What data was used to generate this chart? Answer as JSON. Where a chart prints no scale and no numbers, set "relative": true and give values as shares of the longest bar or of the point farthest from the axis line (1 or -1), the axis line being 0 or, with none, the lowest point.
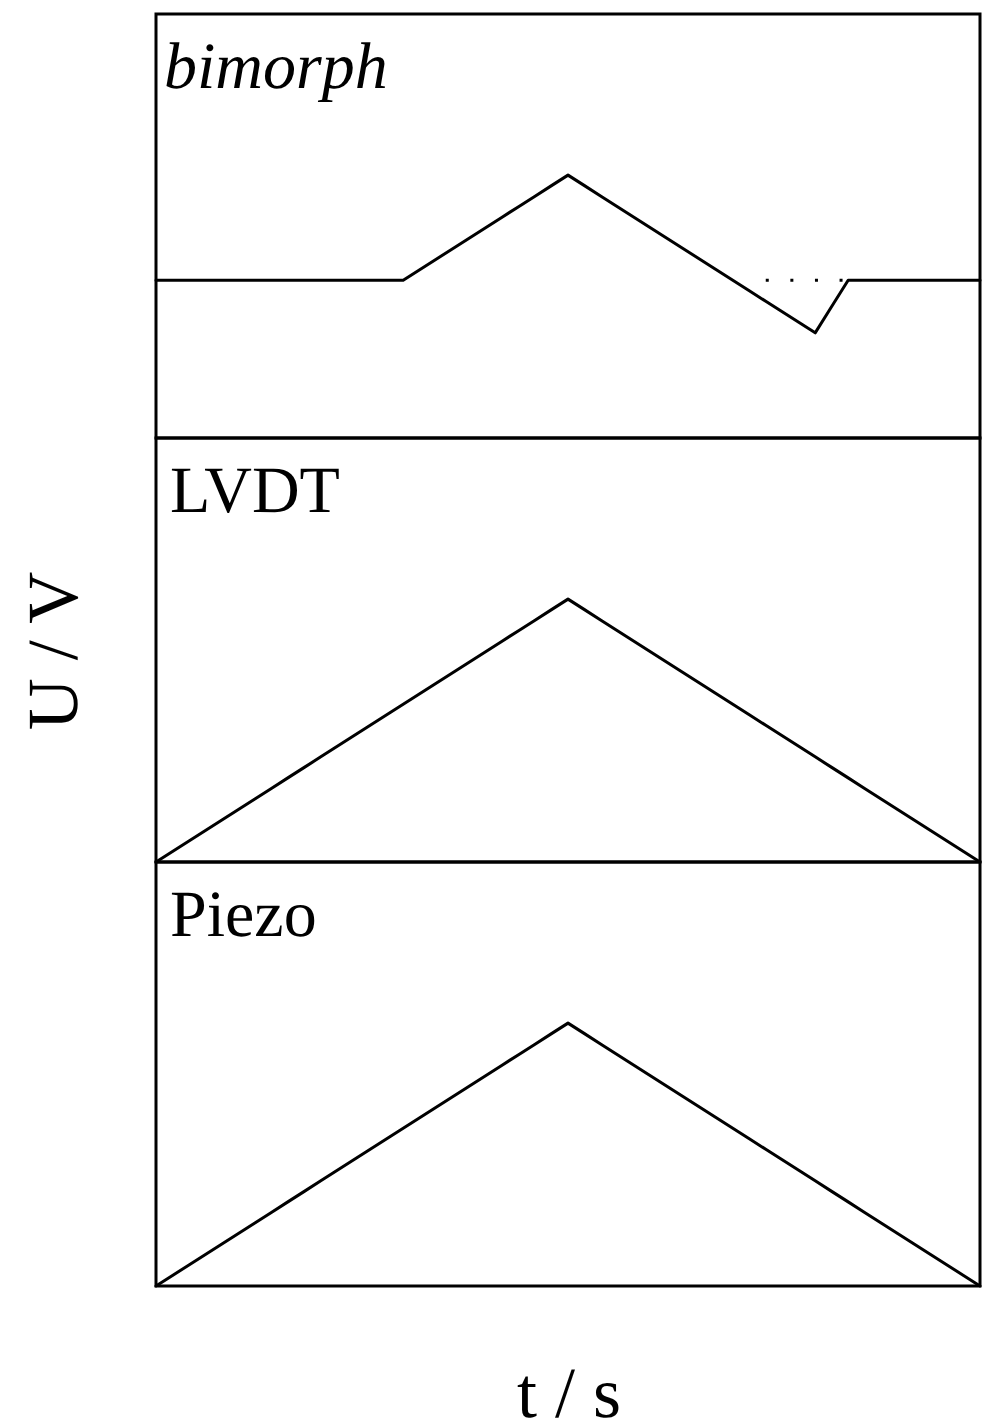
{
  "chart_data": [
    {
      "type": "line",
      "title": "bimorph",
      "relative": true,
      "tick_labels": false,
      "categories": [
        null,
        null,
        null,
        null,
        null,
        null,
        null,
        null,
        null,
        null,
        null,
        null,
        null,
        null,
        null,
        null,
        null,
        null,
        null,
        null,
        null,
        null,
        null,
        null,
        null,
        null,
        null,
        null,
        null,
        null,
        null,
        null,
        null,
        null,
        null,
        null,
        null,
        null,
        null,
        null,
        null,
        null,
        null,
        null,
        null,
        null,
        null,
        null,
        null,
        null,
        null
      ],
      "series": [
        {
          "color": "#000000",
          "values": [
            0.6,
            0.6,
            0.6,
            0.6,
            0.6,
            0.6,
            0.6,
            0.6,
            0.6,
            0.6,
            0.6,
            0.6,
            0.6,
            0.6,
            0.6,
            0.6,
            0.64,
            0.68,
            0.72,
            0.76,
            0.8,
            0.84,
            0.88,
            0.92,
            0.96,
            1,
            0.96,
            0.92,
            0.88,
            0.84,
            0.8,
            0.76,
            0.72,
            0.68,
            0.64,
            0.6,
            0.56,
            0.52,
            0.48,
            0.44,
            0.4,
            0.5,
            0.6,
            0.6,
            0.6,
            0.6,
            0.6,
            0.6,
            0.6,
            0.6,
            0.6
          ]
        },
        {
          "color": "#000000",
          "line_style": "dotted",
          "values": [
            null,
            null,
            null,
            null,
            null,
            null,
            null,
            null,
            null,
            null,
            null,
            null,
            null,
            null,
            null,
            null,
            null,
            null,
            null,
            null,
            null,
            null,
            null,
            null,
            null,
            null,
            null,
            null,
            null,
            null,
            null,
            null,
            null,
            null,
            null,
            null,
            null,
            0.6,
            0.6,
            0.6,
            0.6,
            0.6,
            0.6,
            null,
            null,
            null,
            null,
            null,
            null,
            null,
            null
          ]
        }
      ]
    },
    {
      "type": "line",
      "title": "LVDT",
      "ylabel": "U / V",
      "relative": true,
      "tick_labels": false,
      "categories": [
        null,
        null,
        null,
        null,
        null,
        null,
        null,
        null,
        null,
        null,
        null,
        null,
        null,
        null,
        null,
        null,
        null,
        null,
        null,
        null,
        null,
        null,
        null,
        null,
        null,
        null,
        null,
        null,
        null,
        null,
        null,
        null,
        null,
        null,
        null,
        null,
        null,
        null,
        null,
        null,
        null,
        null,
        null,
        null,
        null,
        null,
        null,
        null,
        null,
        null,
        null
      ],
      "series": [
        {
          "color": "#000000",
          "values": [
            0,
            0.04,
            0.08,
            0.12,
            0.16,
            0.2,
            0.24,
            0.28,
            0.32,
            0.36,
            0.4,
            0.44,
            0.48,
            0.52,
            0.56,
            0.6,
            0.64,
            0.68,
            0.72,
            0.76,
            0.8,
            0.84,
            0.88,
            0.92,
            0.96,
            1,
            0.96,
            0.92,
            0.88,
            0.84,
            0.8,
            0.76,
            0.72,
            0.68,
            0.64,
            0.6,
            0.56,
            0.52,
            0.48,
            0.44,
            0.4,
            0.36,
            0.32,
            0.28,
            0.24,
            0.2,
            0.16,
            0.12,
            0.08,
            0.04,
            0
          ]
        }
      ]
    },
    {
      "type": "line",
      "title": "Piezo",
      "xlabel": "t / s",
      "relative": true,
      "tick_labels": false,
      "categories": [
        null,
        null,
        null,
        null,
        null,
        null,
        null,
        null,
        null,
        null,
        null,
        null,
        null,
        null,
        null,
        null,
        null,
        null,
        null,
        null,
        null,
        null,
        null,
        null,
        null,
        null,
        null,
        null,
        null,
        null,
        null,
        null,
        null,
        null,
        null,
        null,
        null,
        null,
        null,
        null,
        null,
        null,
        null,
        null,
        null,
        null,
        null,
        null,
        null,
        null,
        null
      ],
      "series": [
        {
          "color": "#000000",
          "values": [
            0,
            0.04,
            0.08,
            0.12,
            0.16,
            0.2,
            0.24,
            0.28,
            0.32,
            0.36,
            0.4,
            0.44,
            0.48,
            0.52,
            0.56,
            0.6,
            0.64,
            0.68,
            0.72,
            0.76,
            0.8,
            0.84,
            0.88,
            0.92,
            0.96,
            1,
            0.96,
            0.92,
            0.88,
            0.84,
            0.8,
            0.76,
            0.72,
            0.68,
            0.64,
            0.6,
            0.56,
            0.52,
            0.48,
            0.44,
            0.4,
            0.36,
            0.32,
            0.28,
            0.24,
            0.2,
            0.16,
            0.12,
            0.08,
            0.04,
            0
          ]
        }
      ]
    }
  ]
}
